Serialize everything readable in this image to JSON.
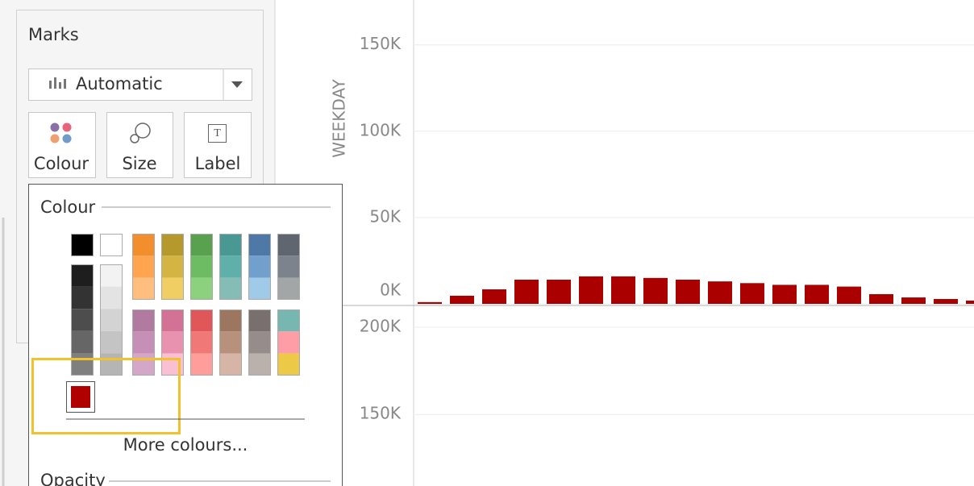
{
  "marks_panel": {
    "title": "Marks",
    "mark_type": "Automatic",
    "buttons": [
      "Colour",
      "Size",
      "Label"
    ]
  },
  "colour_popup": {
    "title": "Colour",
    "selected_color": "#b00000",
    "more_link": "More colours...",
    "opacity_title": "Opacity"
  },
  "chart_data": [
    {
      "type": "bar",
      "y_label": "WEEKDAY",
      "color": "#aa0000",
      "values": [
        1000,
        4700,
        8400,
        14000,
        14000,
        15900,
        15900,
        15000,
        14000,
        13000,
        12000,
        11000,
        11000,
        10000,
        5600,
        3700,
        2800,
        1900
      ],
      "ylim": [
        0,
        176000
      ],
      "yticks": [
        {
          "value": 0,
          "label": "0K"
        },
        {
          "value": 50000,
          "label": "50K"
        },
        {
          "value": 100000,
          "label": "100K"
        },
        {
          "value": 150000,
          "label": "150K"
        }
      ],
      "grid": true
    },
    {
      "type": "bar",
      "ylim": [
        109000,
        212000
      ],
      "yticks": [
        {
          "value": 150000,
          "label": "150K"
        },
        {
          "value": 200000,
          "label": "200K"
        }
      ],
      "grid": true
    }
  ]
}
